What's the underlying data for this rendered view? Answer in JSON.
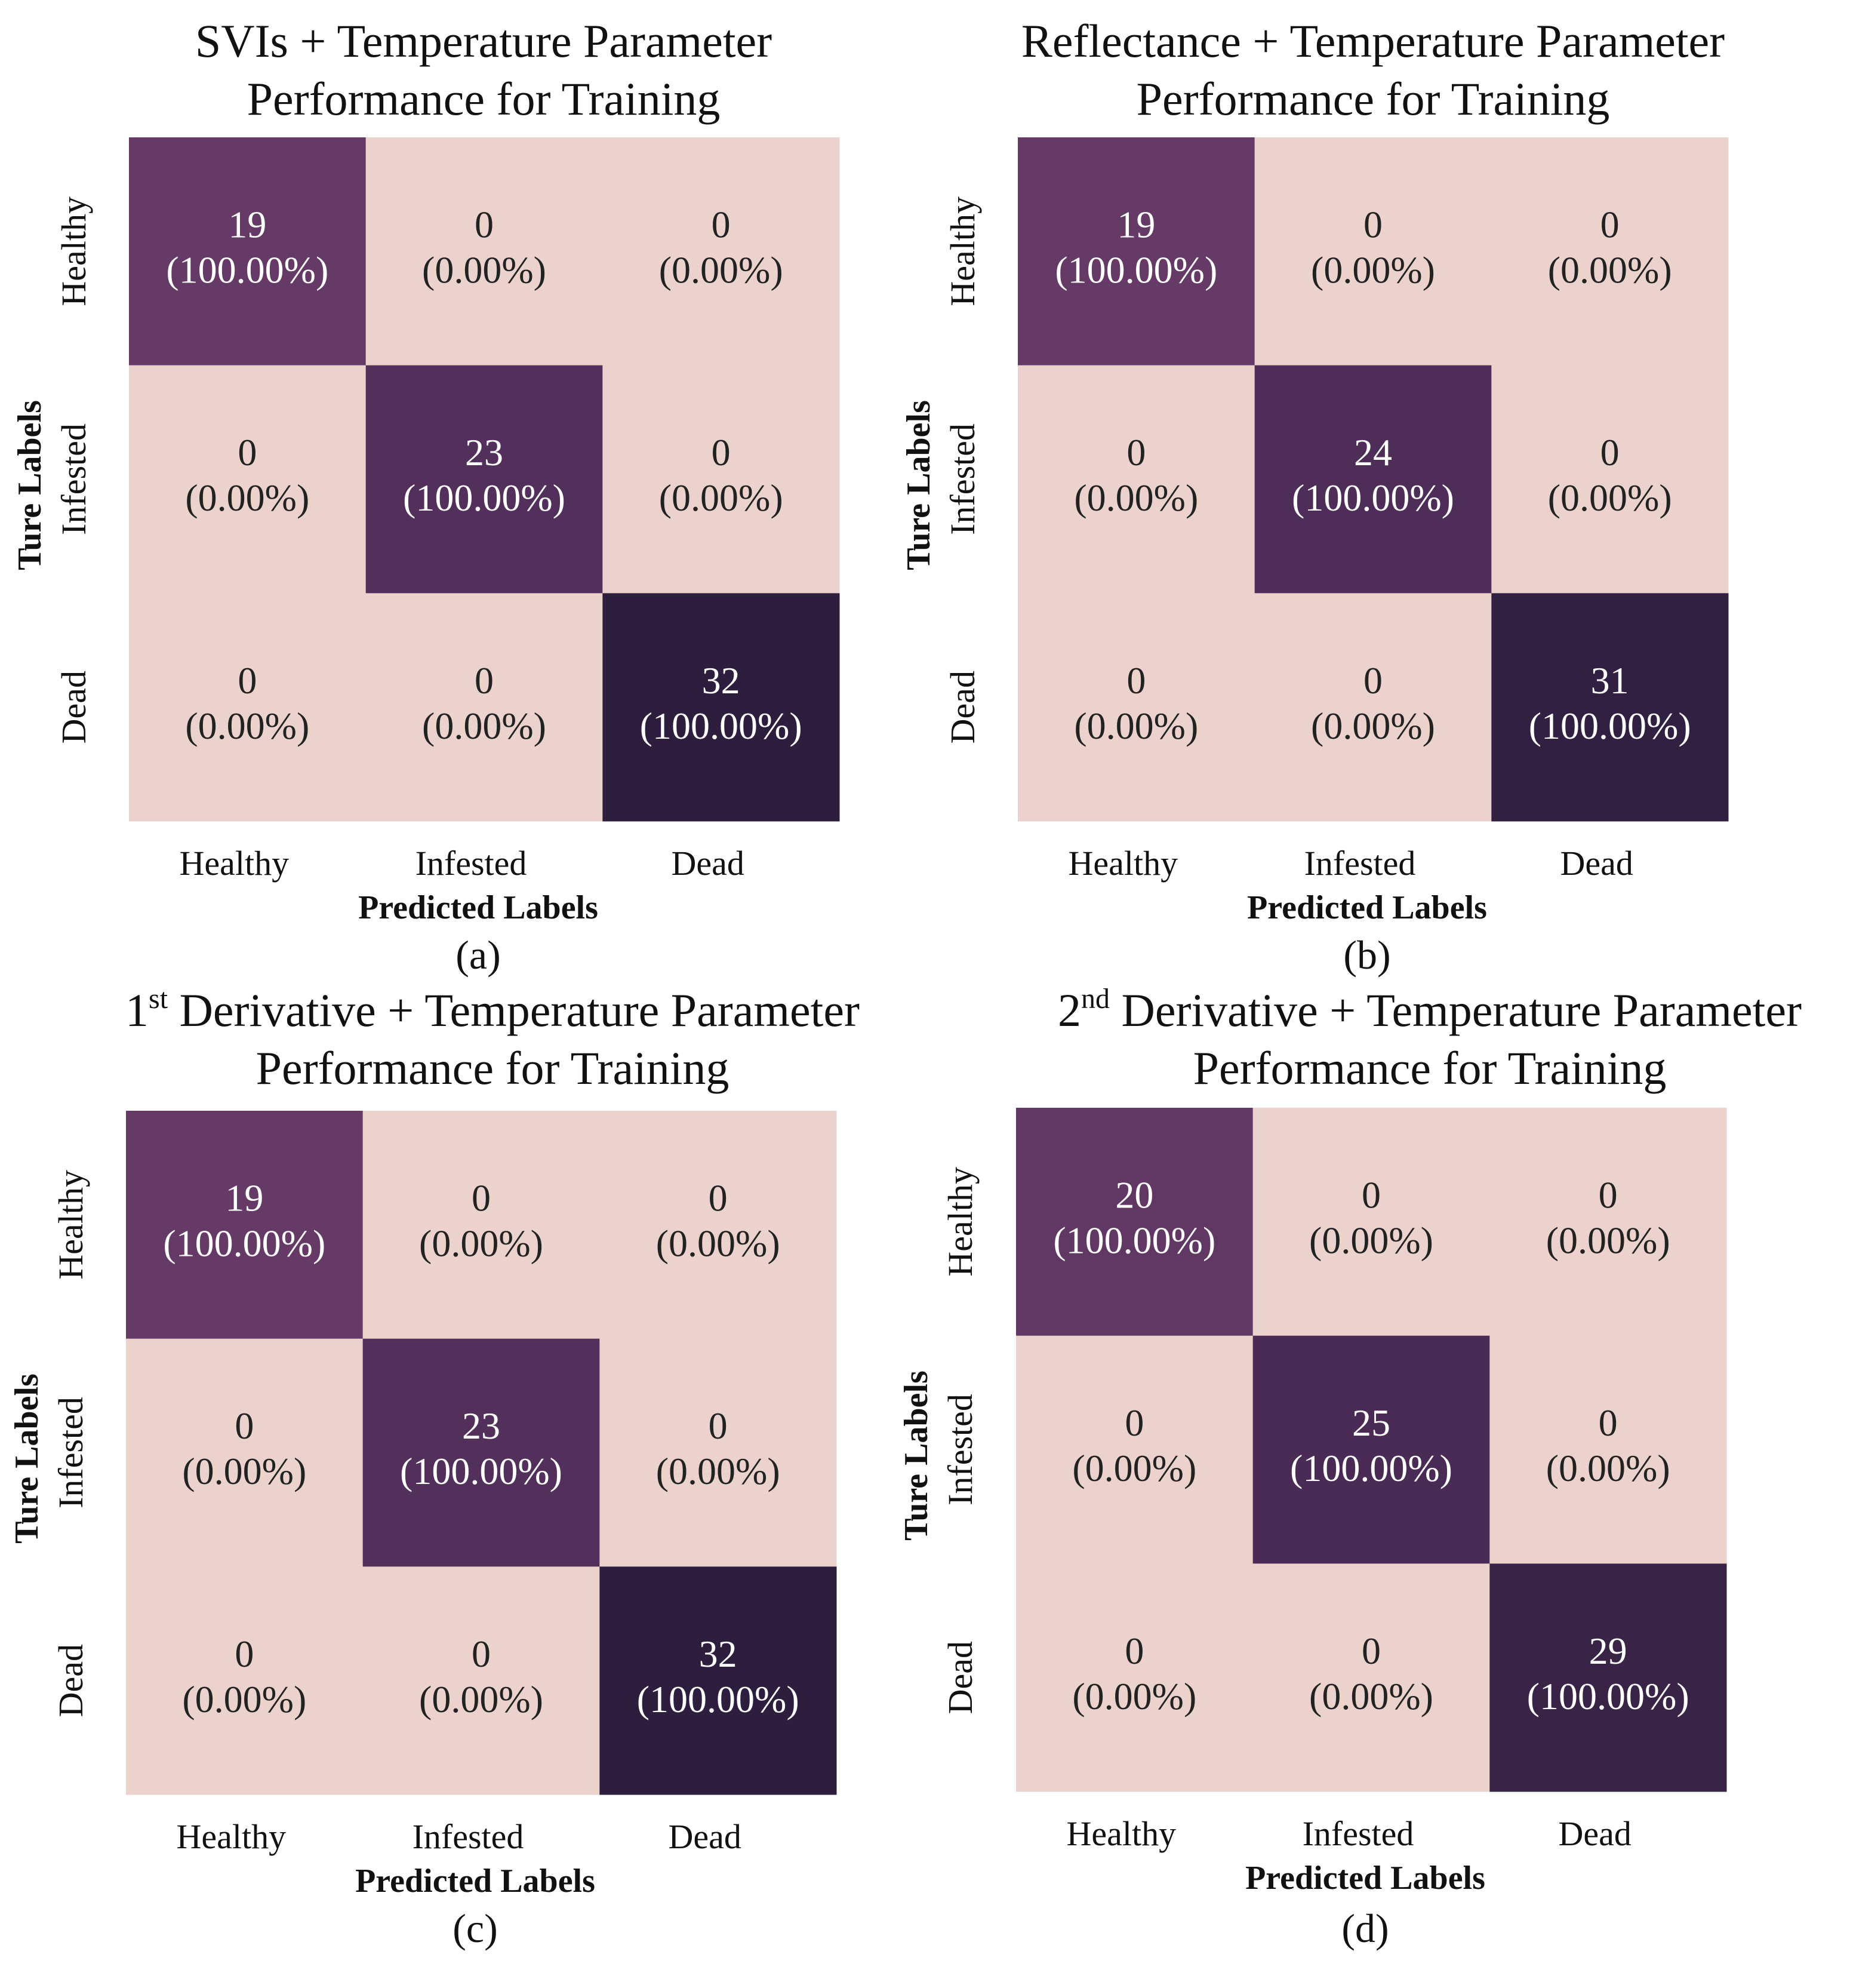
{
  "chart_data": [
    {
      "type": "heatmap",
      "title_lines": [
        {
          "main": "SVIs + Temperature Parameter",
          "sup": "",
          "rest": ""
        },
        {
          "main": "Performance for Training",
          "sup": "",
          "rest": ""
        }
      ],
      "row_categories": [
        "Healthy",
        "Infested",
        "Dead"
      ],
      "col_categories": [
        "Healthy",
        "Infested",
        "Dead"
      ],
      "values": [
        [
          19,
          0,
          0
        ],
        [
          0,
          23,
          0
        ],
        [
          0,
          0,
          32
        ]
      ],
      "percent_labels": [
        [
          "(100.00%)",
          "(0.00%)",
          "(0.00%)"
        ],
        [
          "(0.00%)",
          "(100.00%)",
          "(0.00%)"
        ],
        [
          "(0.00%)",
          "(0.00%)",
          "(100.00%)"
        ]
      ],
      "xlabel": "Predicted Labels",
      "ylabel": "Ture Labels",
      "sublabel": "(a)"
    },
    {
      "type": "heatmap",
      "title_lines": [
        {
          "main": "Reflectance + Temperature Parameter",
          "sup": "",
          "rest": ""
        },
        {
          "main": "Performance for Training",
          "sup": "",
          "rest": ""
        }
      ],
      "row_categories": [
        "Healthy",
        "Infested",
        "Dead"
      ],
      "col_categories": [
        "Healthy",
        "Infested",
        "Dead"
      ],
      "values": [
        [
          19,
          0,
          0
        ],
        [
          0,
          24,
          0
        ],
        [
          0,
          0,
          31
        ]
      ],
      "percent_labels": [
        [
          "(100.00%)",
          "(0.00%)",
          "(0.00%)"
        ],
        [
          "(0.00%)",
          "(100.00%)",
          "(0.00%)"
        ],
        [
          "(0.00%)",
          "(0.00%)",
          "(100.00%)"
        ]
      ],
      "xlabel": "Predicted Labels",
      "ylabel": "Ture Labels",
      "sublabel": "(b)"
    },
    {
      "type": "heatmap",
      "title_lines": [
        {
          "main": "1",
          "sup": "st",
          "rest": " Derivative + Temperature Parameter"
        },
        {
          "main": "Performance for Training",
          "sup": "",
          "rest": ""
        }
      ],
      "row_categories": [
        "Healthy",
        "Infested",
        "Dead"
      ],
      "col_categories": [
        "Healthy",
        "Infested",
        "Dead"
      ],
      "values": [
        [
          19,
          0,
          0
        ],
        [
          0,
          23,
          0
        ],
        [
          0,
          0,
          32
        ]
      ],
      "percent_labels": [
        [
          "(100.00%)",
          "(0.00%)",
          "(0.00%)"
        ],
        [
          "(0.00%)",
          "(100.00%)",
          "(0.00%)"
        ],
        [
          "(0.00%)",
          "(0.00%)",
          "(100.00%)"
        ]
      ],
      "xlabel": "Predicted Labels",
      "ylabel": "Ture Labels",
      "sublabel": "(c)"
    },
    {
      "type": "heatmap",
      "title_lines": [
        {
          "main": "2",
          "sup": "nd",
          "rest": " Derivative + Temperature Parameter"
        },
        {
          "main": "Performance for Training",
          "sup": "",
          "rest": ""
        }
      ],
      "row_categories": [
        "Healthy",
        "Infested",
        "Dead"
      ],
      "col_categories": [
        "Healthy",
        "Infested",
        "Dead"
      ],
      "values": [
        [
          20,
          0,
          0
        ],
        [
          0,
          25,
          0
        ],
        [
          0,
          0,
          29
        ]
      ],
      "percent_labels": [
        [
          "(100.00%)",
          "(0.00%)",
          "(0.00%)"
        ],
        [
          "(0.00%)",
          "(100.00%)",
          "(0.00%)"
        ],
        [
          "(0.00%)",
          "(0.00%)",
          "(100.00%)"
        ]
      ],
      "xlabel": "Predicted Labels",
      "ylabel": "Ture Labels",
      "sublabel": "(d)"
    }
  ],
  "colors": {
    "zero_cell": "#ecd2cc",
    "colormap": [
      "#ecd2cc",
      "#935783",
      "#73426f",
      "#4e2d58",
      "#2d1e3e"
    ],
    "text_light": "#ffffff",
    "text_dark": "#222222"
  }
}
